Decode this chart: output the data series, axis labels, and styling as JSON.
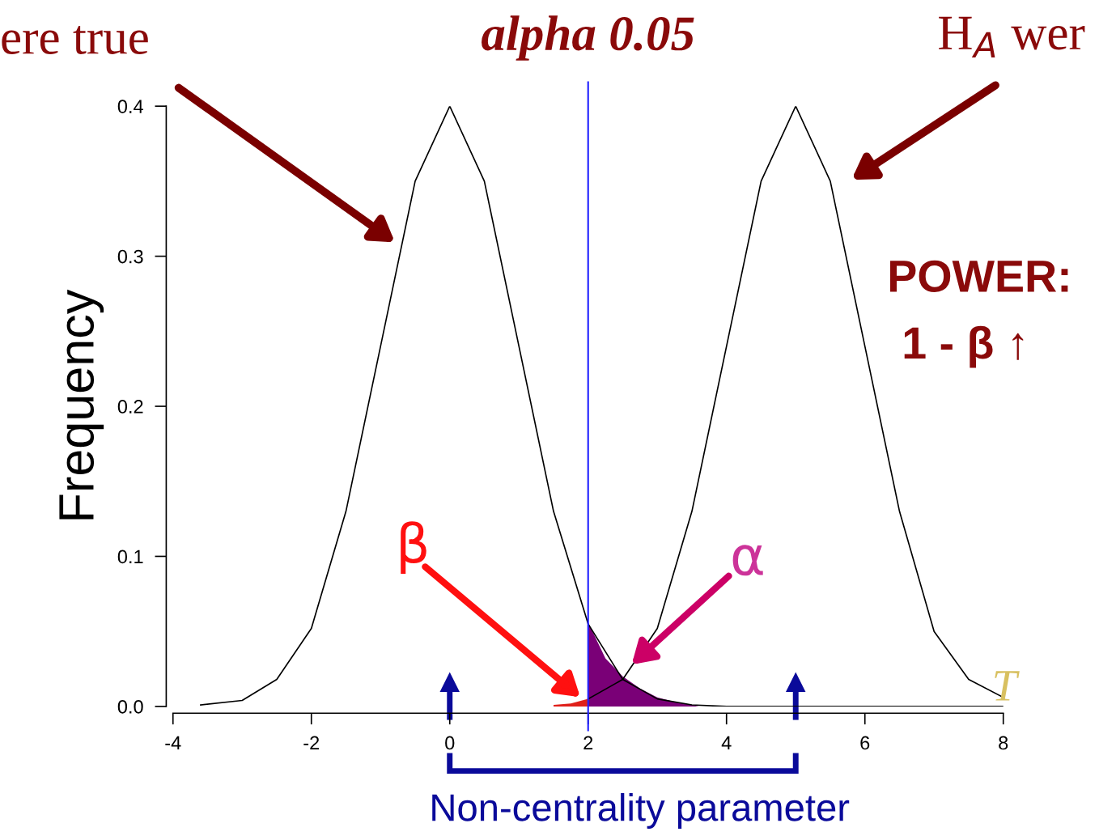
{
  "chart_data": {
    "type": "line",
    "title": "alpha 0.05",
    "ylabel": "Frequency",
    "xlim": [
      -4,
      8
    ],
    "ylim": [
      0,
      0.4
    ],
    "xticks": [
      -4,
      -2,
      0,
      2,
      4,
      6,
      8
    ],
    "yticks": [
      {
        "value": 0,
        "label": "0.0"
      },
      0.1,
      0.2,
      0.3,
      0.4
    ],
    "grid": false,
    "legend": false,
    "marker": "none",
    "line_style": "solid",
    "series": [
      {
        "color": "#000000",
        "x": [
          -3.6,
          -3,
          -2.5,
          -2,
          -1.5,
          -1,
          -0.5,
          0,
          0.5,
          1,
          1.5,
          2,
          2.5,
          3,
          3.5,
          4,
          8
        ],
        "values": [
          0.001,
          0.004,
          0.018,
          0.052,
          0.13,
          0.24,
          0.35,
          0.4,
          0.35,
          0.24,
          0.13,
          0.055,
          0.018,
          0.005,
          0.001,
          0,
          0
        ]
      },
      {
        "color": "#000000",
        "x": [
          2,
          2.5,
          3,
          3.5,
          4,
          4.5,
          5,
          5.5,
          6,
          6.5,
          7,
          7.5,
          8
        ],
        "values": [
          0.005,
          0.018,
          0.052,
          0.13,
          0.24,
          0.35,
          0.4,
          0.35,
          0.24,
          0.13,
          0.05,
          0.018,
          0.006
        ]
      },
      {
        "type": "area",
        "color": "#7a0077",
        "x": [
          2,
          2.25,
          2.5,
          2.75,
          3,
          3.25,
          3.5,
          3.6
        ],
        "values": [
          0.056,
          0.032,
          0.02,
          0.012,
          0.006,
          0.003,
          0.001,
          0
        ]
      },
      {
        "type": "area",
        "color": "#e0201a",
        "x": [
          1.5,
          1.75,
          2
        ],
        "values": [
          0.001,
          0.002,
          0.005
        ]
      }
    ],
    "ref_lines": [
      {
        "axis": "x",
        "value": 2,
        "color": "#2020ff"
      }
    ],
    "annotations": [
      "ere true",
      "H$_{A}$ wer",
      "POWER:",
      "1 - β ↑",
      "β",
      "α",
      "T",
      "Non-centrality parameter"
    ]
  }
}
